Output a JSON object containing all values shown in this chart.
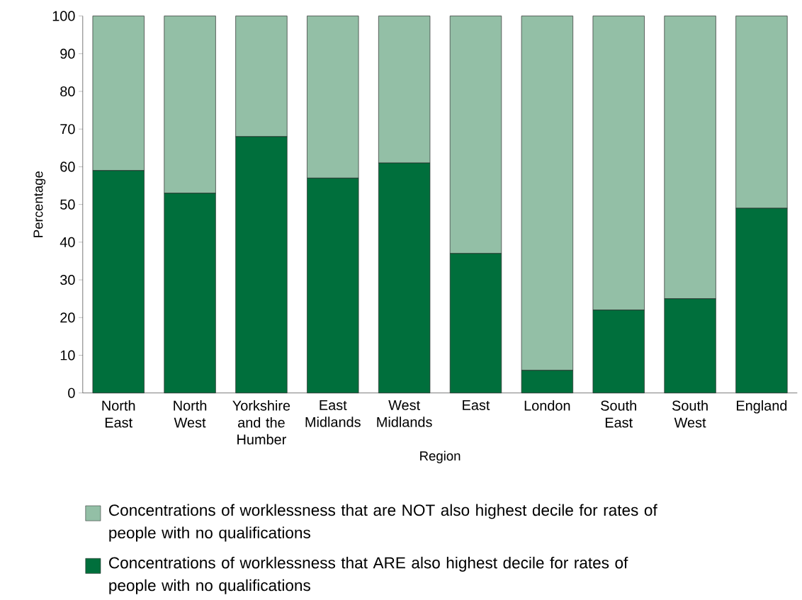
{
  "chart_data": {
    "type": "bar",
    "stacked": true,
    "xlabel": "Region",
    "ylabel": "Percentage",
    "categories": [
      "North East",
      "North West",
      "Yorkshire and the Humber",
      "East Midlands",
      "West Midlands",
      "East",
      "London",
      "South East",
      "South West",
      "England"
    ],
    "series": [
      {
        "name": "Concentrations of worklessness that ARE also highest decile for rates of people with no qualifications",
        "color": "#006f3c",
        "values": [
          59,
          53,
          68,
          57,
          61,
          37,
          6,
          22,
          25,
          49
        ]
      },
      {
        "name": "Concentrations of worklessness that are NOT also highest decile for rates of people with no qualifications",
        "color": "#93bfa6",
        "values": [
          41,
          47,
          32,
          43,
          39,
          63,
          94,
          78,
          75,
          51
        ]
      }
    ],
    "ylim": [
      0,
      100
    ],
    "yticks": [
      0,
      10,
      20,
      30,
      40,
      50,
      60,
      70,
      80,
      90,
      100
    ],
    "legend": "bottom",
    "grid": false
  }
}
